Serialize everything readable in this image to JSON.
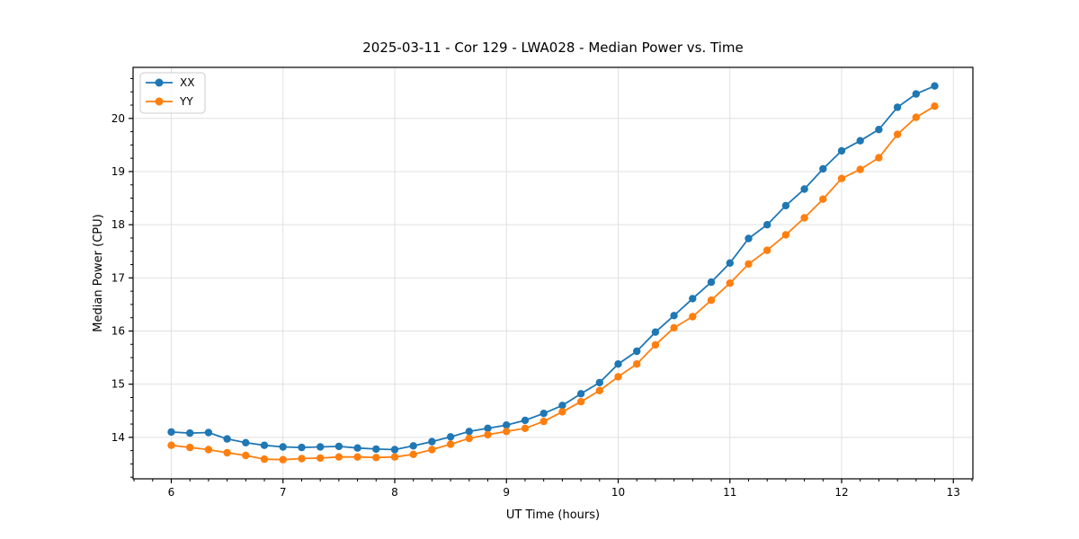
{
  "chart_data": {
    "type": "line",
    "title": "2025-03-11 - Cor 129 - LWA028 - Median Power vs. Time",
    "xlabel": "UT Time (hours)",
    "ylabel": "Median Power (CPU)",
    "xlim": [
      5.658,
      13.175
    ],
    "ylim": [
      13.22,
      20.96
    ],
    "xticks": [
      6,
      7,
      8,
      9,
      10,
      11,
      12,
      13
    ],
    "yticks": [
      14,
      15,
      16,
      17,
      18,
      19,
      20
    ],
    "x_minor_step": 0.166667,
    "y_minor_step": 0.25,
    "grid": true,
    "grid_color": "#e0e0e0",
    "frame_color": "#000000",
    "legend": {
      "position": "upper-left",
      "entries": [
        "XX",
        "YY"
      ]
    },
    "x": [
      6.0,
      6.1667,
      6.3333,
      6.5,
      6.6667,
      6.8333,
      7.0,
      7.1667,
      7.3333,
      7.5,
      7.6667,
      7.8333,
      8.0,
      8.1667,
      8.3333,
      8.5,
      8.6667,
      8.8333,
      9.0,
      9.1667,
      9.3333,
      9.5,
      9.6667,
      9.8333,
      10.0,
      10.1667,
      10.3333,
      10.5,
      10.6667,
      10.8333,
      11.0,
      11.1667,
      11.3333,
      11.5,
      11.6667,
      11.8333,
      12.0,
      12.1667,
      12.3333,
      12.5,
      12.6667,
      12.8333
    ],
    "series": [
      {
        "name": "XX",
        "color": "#1f77b4",
        "values": [
          14.1,
          14.08,
          14.09,
          13.97,
          13.9,
          13.85,
          13.82,
          13.81,
          13.82,
          13.83,
          13.8,
          13.78,
          13.77,
          13.84,
          13.92,
          14.01,
          14.11,
          14.17,
          14.23,
          14.32,
          14.45,
          14.6,
          14.82,
          15.03,
          15.38,
          15.62,
          15.98,
          16.29,
          16.61,
          16.92,
          17.28,
          17.74,
          18.0,
          18.36,
          18.67,
          19.05,
          19.39,
          19.58,
          19.79,
          20.21,
          20.46,
          20.61
        ]
      },
      {
        "name": "YY",
        "color": "#ff7f0e",
        "values": [
          13.85,
          13.81,
          13.77,
          13.71,
          13.66,
          13.59,
          13.58,
          13.6,
          13.61,
          13.63,
          13.63,
          13.62,
          13.63,
          13.68,
          13.77,
          13.87,
          13.98,
          14.05,
          14.11,
          14.17,
          14.3,
          14.48,
          14.67,
          14.88,
          15.14,
          15.38,
          15.74,
          16.06,
          16.27,
          16.58,
          16.9,
          17.26,
          17.52,
          17.81,
          18.13,
          18.48,
          18.87,
          19.04,
          19.26,
          19.7,
          20.02,
          20.23
        ]
      }
    ]
  }
}
